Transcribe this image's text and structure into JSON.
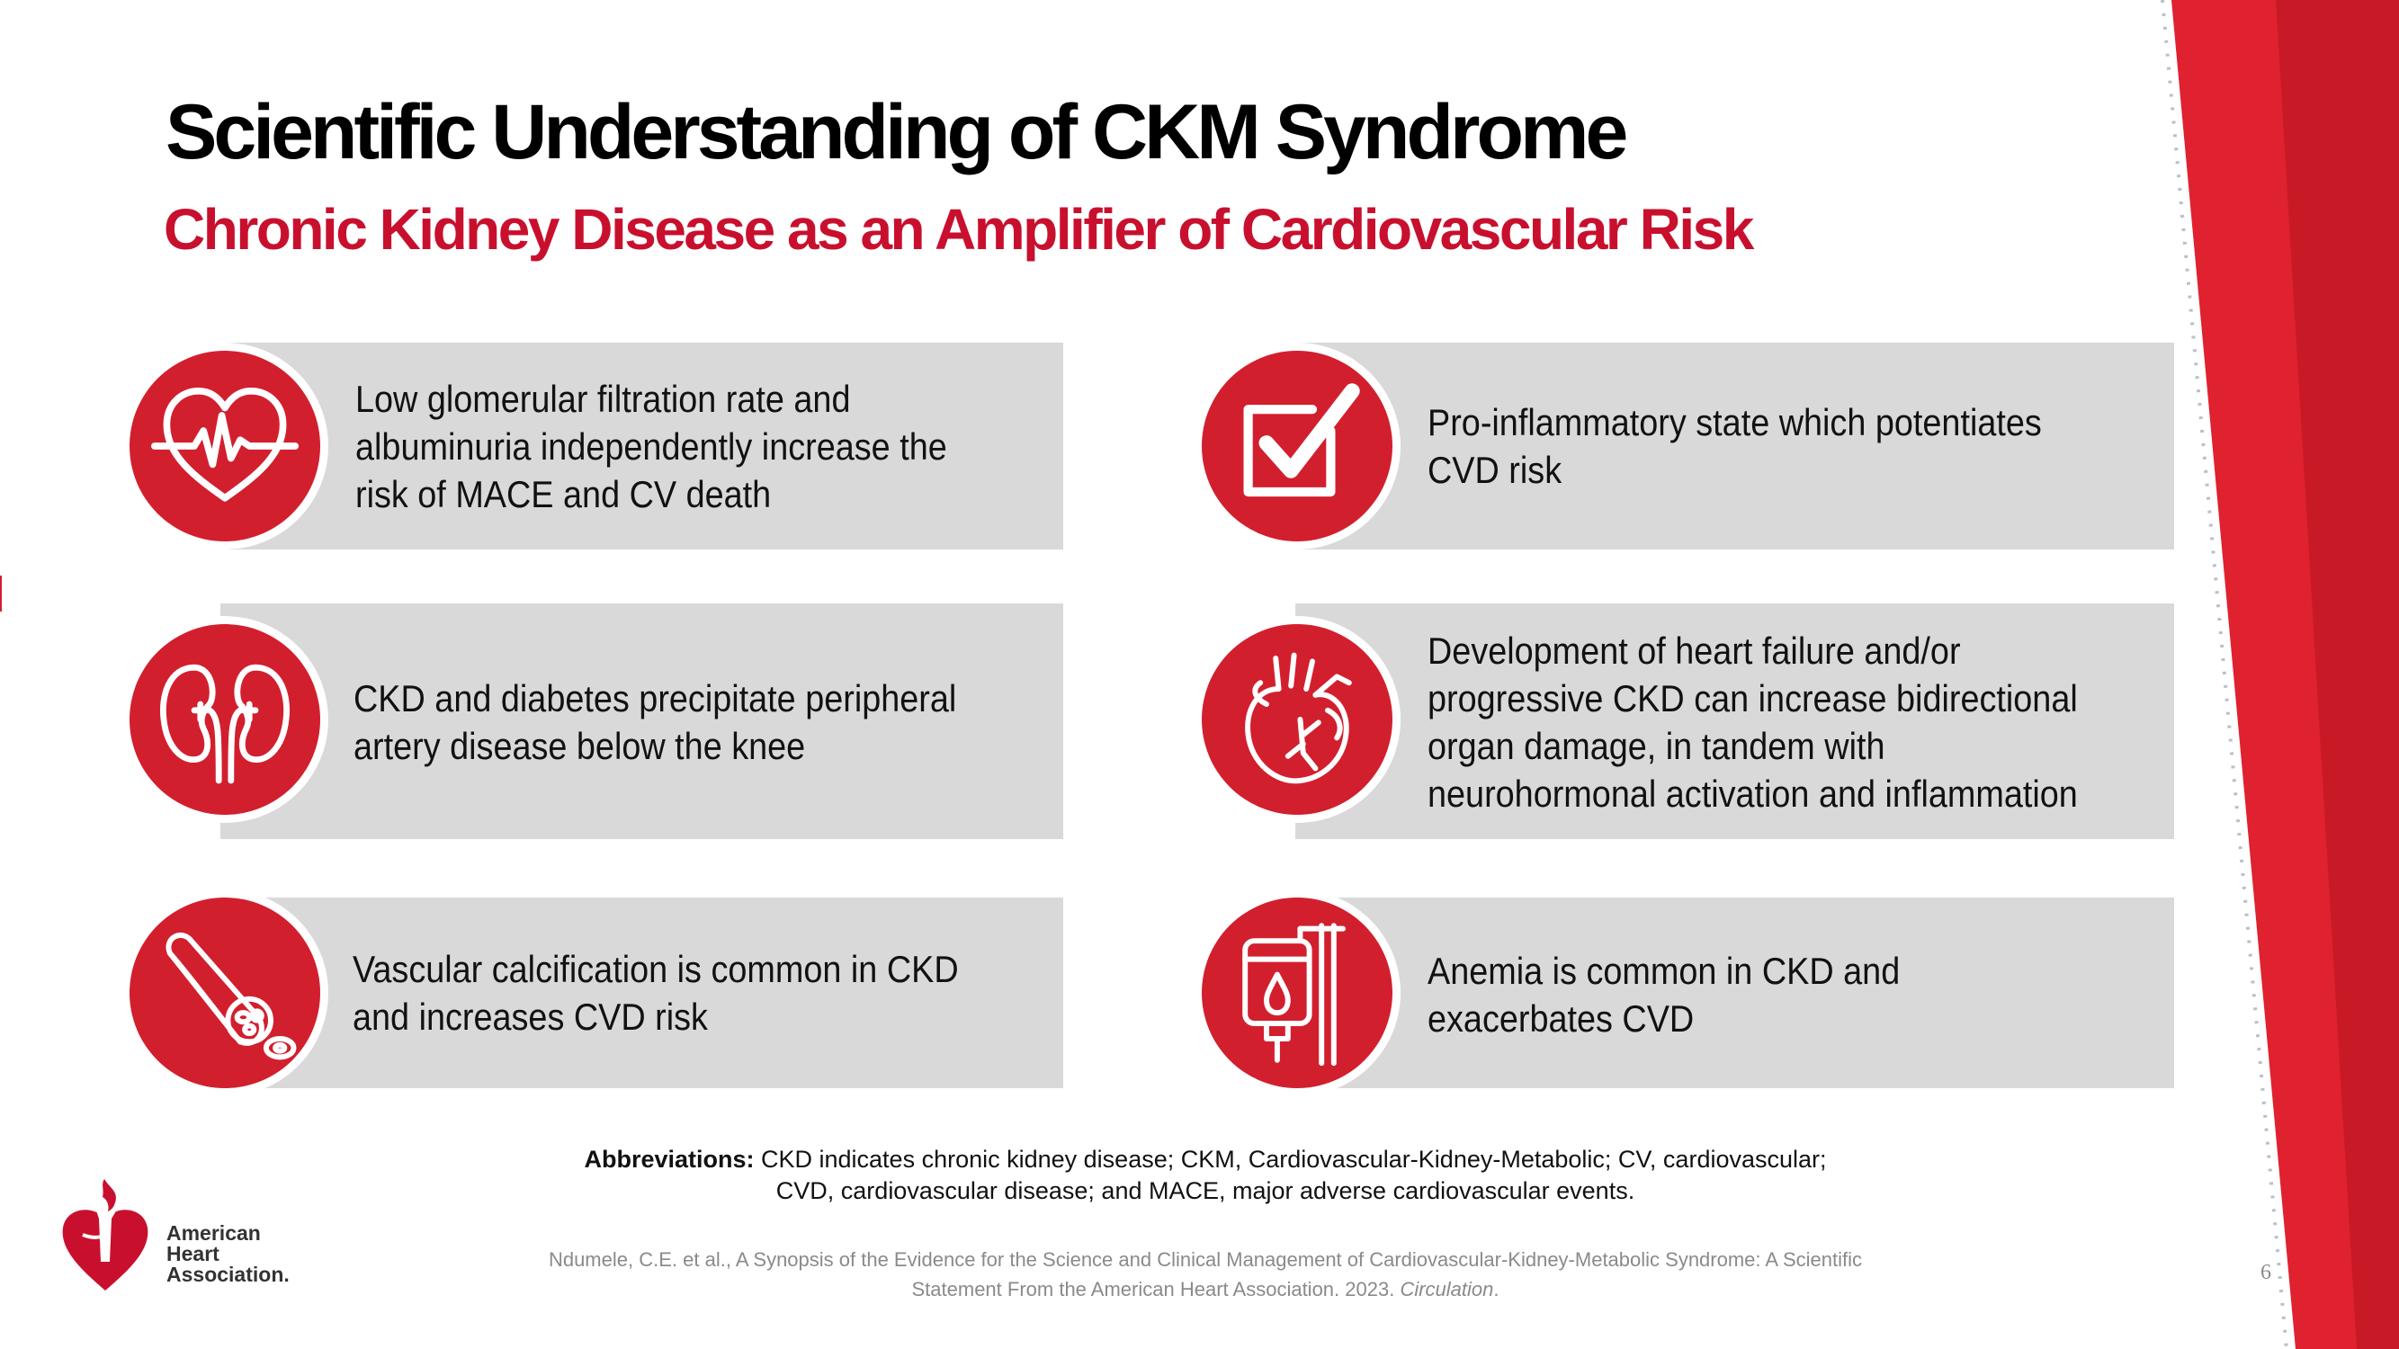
{
  "slide": {
    "title": "Scientific Understanding of CKM Syndrome",
    "subtitle": "Chronic Kidney Disease as an Amplifier of  Cardiovascular Risk",
    "page_number": "6"
  },
  "colors": {
    "accent_red": "#c8102e",
    "icon_red": "#d21f2e",
    "card_gray": "#d9d9d9"
  },
  "cards": [
    {
      "icon": "heart-pulse-icon",
      "text": "Low glomerular filtration rate and albuminuria independently increase the risk of MACE and CV death"
    },
    {
      "icon": "checkbox-check-icon",
      "text": "Pro-inflammatory state which potentiates CVD risk"
    },
    {
      "icon": "kidneys-icon",
      "text": "CKD and diabetes precipitate peripheral artery disease below the knee"
    },
    {
      "icon": "anatomical-heart-icon",
      "text": "Development of heart failure and/or progressive CKD can increase bidirectional organ damage, in tandem with neurohormonal activation and inflammation"
    },
    {
      "icon": "blood-vessel-icon",
      "text": "Vascular calcification is common in CKD and increases CVD risk"
    },
    {
      "icon": "iv-blood-bag-icon",
      "text": "Anemia is common in CKD and exacerbates CVD"
    }
  ],
  "abbreviations": {
    "label": "Abbreviations:",
    "line1": " CKD indicates chronic kidney disease; CKM, Cardiovascular-Kidney-Metabolic; CV, cardiovascular;",
    "line2": "CVD, cardiovascular disease; and MACE, major adverse cardiovascular events."
  },
  "citation": {
    "line1": "Ndumele, C.E. et al., A Synopsis of the Evidence for the Science and Clinical Management of Cardiovascular-Kidney-Metabolic Syndrome: A Scientific",
    "line2": "Statement From the American Heart Association. 2023. ",
    "journal": "Circulation",
    "end": "."
  },
  "logo": {
    "icon": "torch-heart-icon",
    "line1": "American",
    "line2": "Heart",
    "line3": "Association."
  }
}
